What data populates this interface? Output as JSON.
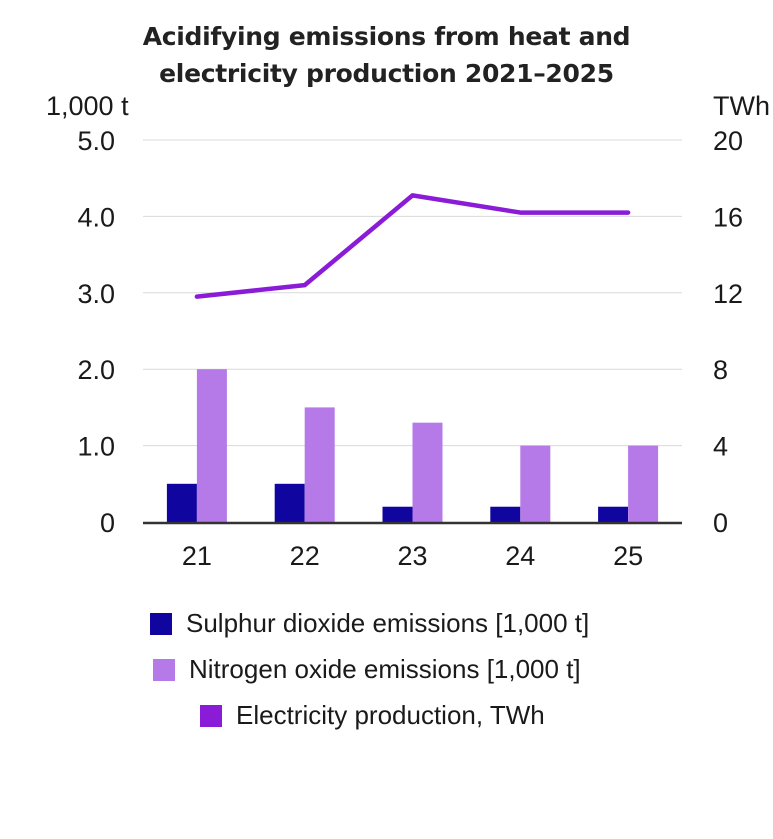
{
  "title": {
    "line1": "Acidifying emissions from heat and",
    "line2": "electricity production 2021–2025"
  },
  "chart_data": {
    "type": "bar+line",
    "title": "Acidifying emissions from heat and electricity production 2021–2025",
    "categories": [
      "21",
      "22",
      "23",
      "24",
      "25"
    ],
    "left_axis": {
      "label": "1,000 t",
      "range": [
        0,
        5
      ],
      "ticks": [
        "0",
        "1.0",
        "2.0",
        "3.0",
        "4.0",
        "5.0"
      ],
      "tick_values": [
        0,
        1,
        2,
        3,
        4,
        5
      ]
    },
    "right_axis": {
      "label": "TWh",
      "range": [
        0,
        20
      ],
      "ticks": [
        "0",
        "4",
        "8",
        "12",
        "16",
        "20"
      ],
      "tick_values": [
        0,
        4,
        8,
        12,
        16,
        20
      ]
    },
    "grid": true,
    "series": [
      {
        "name": "Sulphur dioxide emissions [1,000 t]",
        "type": "bar",
        "axis": "left",
        "color": "#10069f",
        "values": [
          0.5,
          0.5,
          0.2,
          0.2,
          0.2
        ]
      },
      {
        "name": "Nitrogen oxide emissions [1,000 t]",
        "type": "bar",
        "axis": "left",
        "color": "#b57ae8",
        "values": [
          2.0,
          1.5,
          1.3,
          1.0,
          1.0
        ]
      },
      {
        "name": "Electricity production, TWh",
        "type": "line",
        "axis": "right",
        "color": "#8a1bd6",
        "values": [
          11.8,
          12.4,
          17.1,
          16.2,
          16.2
        ]
      }
    ],
    "legend_position": "bottom"
  },
  "colors": {
    "axis": "#333333",
    "grid": "#d9d9d9"
  }
}
